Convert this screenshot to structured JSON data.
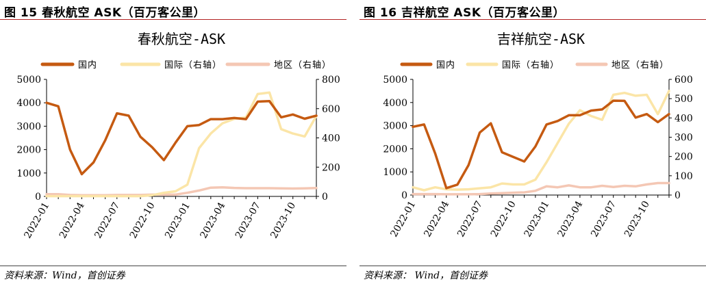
{
  "panels": [
    {
      "fig_title": "图 15 春秋航空 ASK（百万客公里）",
      "source": "资料来源：Wind，首创证券"
    },
    {
      "fig_title": "图 16 吉祥航空 ASK（百万客公里）",
      "source": "资料来源： Wind，首创证券"
    }
  ],
  "colors": {
    "domestic": "#c55a11",
    "international": "#fbe5a7",
    "regional": "#f4c7b4",
    "rule": "#b22222"
  },
  "chart_data": [
    {
      "type": "line",
      "title": "春秋航空-ASK",
      "x": [
        "2022-01",
        "2022-02",
        "2022-03",
        "2022-04",
        "2022-05",
        "2022-06",
        "2022-07",
        "2022-08",
        "2022-09",
        "2022-10",
        "2022-11",
        "2022-12",
        "2023-01",
        "2023-02",
        "2023-03",
        "2023-04",
        "2023-05",
        "2023-06",
        "2023-07",
        "2023-08",
        "2023-09",
        "2023-10",
        "2023-11",
        "2023-12"
      ],
      "x_tick_labels": [
        "2022-01",
        "2022-04",
        "2022-07",
        "2022-10",
        "2023-01",
        "2023-04",
        "2023-07",
        "2023-10"
      ],
      "ylim_left": [
        0,
        5000
      ],
      "yticks_left": [
        0,
        1000,
        2000,
        3000,
        4000,
        5000
      ],
      "ylim_right": [
        0,
        800
      ],
      "yticks_right": [
        0,
        200,
        400,
        600,
        800
      ],
      "legend_position": "top",
      "series": [
        {
          "name": "国内",
          "axis": "left",
          "color": "#c55a11",
          "values": [
            4000,
            3850,
            2000,
            950,
            1450,
            2400,
            3550,
            3450,
            2550,
            2100,
            1550,
            2300,
            3000,
            3050,
            3300,
            3300,
            3350,
            3300,
            4050,
            4070,
            3380,
            3500,
            3320,
            3450
          ]
        },
        {
          "name": "国际（右轴）",
          "axis": "right",
          "color": "#fbe5a7",
          "values": [
            2,
            2,
            2,
            2,
            2,
            2,
            2,
            2,
            2,
            8,
            25,
            35,
            80,
            330,
            430,
            500,
            530,
            540,
            700,
            710,
            460,
            430,
            410,
            550
          ]
        },
        {
          "name": "地区（右轴）",
          "axis": "right",
          "color": "#f4c7b4",
          "values": [
            15,
            15,
            10,
            8,
            8,
            8,
            10,
            10,
            10,
            12,
            12,
            12,
            25,
            40,
            60,
            62,
            58,
            56,
            56,
            56,
            55,
            54,
            55,
            57
          ]
        }
      ]
    },
    {
      "type": "line",
      "title": "吉祥航空-ASK",
      "x": [
        "2022-01",
        "2022-02",
        "2022-03",
        "2022-04",
        "2022-05",
        "2022-06",
        "2022-07",
        "2022-08",
        "2022-09",
        "2022-10",
        "2022-11",
        "2022-12",
        "2023-01",
        "2023-02",
        "2023-03",
        "2023-04",
        "2023-05",
        "2023-06",
        "2023-07",
        "2023-08",
        "2023-09",
        "2023-10",
        "2023-11",
        "2023-12"
      ],
      "x_tick_labels": [
        "2022-01",
        "2022-04",
        "2022-07",
        "2022-10",
        "2023-01",
        "2023-04",
        "2023-07",
        "2023-10"
      ],
      "ylim_left": [
        0,
        5000
      ],
      "yticks_left": [
        0,
        1000,
        2000,
        3000,
        4000,
        5000
      ],
      "ylim_right": [
        0,
        600
      ],
      "yticks_right": [
        0,
        100,
        200,
        300,
        400,
        500,
        600
      ],
      "legend_position": "top",
      "series": [
        {
          "name": "国内",
          "axis": "left",
          "color": "#c55a11",
          "values": [
            2950,
            3050,
            1800,
            300,
            450,
            1300,
            2700,
            3100,
            1850,
            1650,
            1450,
            2100,
            3050,
            3200,
            3450,
            3450,
            3650,
            3700,
            4080,
            4070,
            3350,
            3500,
            3150,
            3500
          ]
        },
        {
          "name": "国际（右轴）",
          "axis": "right",
          "color": "#fbe5a7",
          "values": [
            40,
            25,
            40,
            30,
            28,
            30,
            35,
            40,
            60,
            55,
            55,
            80,
            170,
            270,
            370,
            440,
            410,
            390,
            520,
            530,
            515,
            520,
            420,
            540
          ]
        },
        {
          "name": "地区（右轴）",
          "axis": "right",
          "color": "#f4c7b4",
          "values": [
            5,
            5,
            5,
            4,
            4,
            4,
            5,
            8,
            10,
            12,
            14,
            22,
            45,
            40,
            50,
            40,
            40,
            48,
            42,
            48,
            45,
            55,
            62,
            62
          ]
        }
      ]
    }
  ]
}
